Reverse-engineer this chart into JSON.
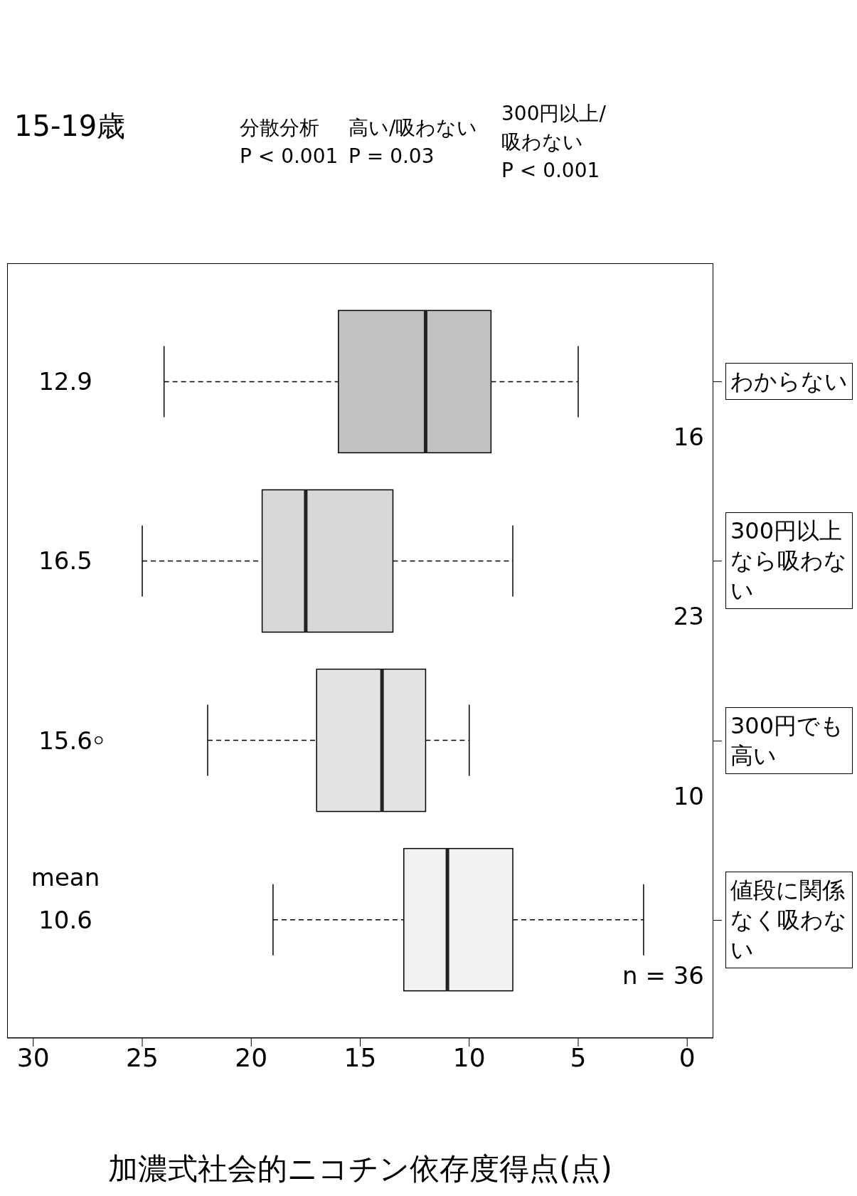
{
  "chart_data": {
    "type": "box",
    "orientation": "horizontal",
    "title": "15-19歳",
    "xlabel": "加濃式社会的ニコチン依存度得点(点)",
    "categories": [
      "わからない",
      "300円以上なら吸わない",
      "300円でも高い",
      "値段に関係なく吸わない"
    ],
    "boxes": [
      {
        "low": 5,
        "q1": 9,
        "median": 12,
        "q3": 16,
        "high": 24
      },
      {
        "low": 8,
        "q1": 13.5,
        "median": 17.5,
        "q3": 19.5,
        "high": 25
      },
      {
        "low": 10,
        "q1": 12,
        "median": 14,
        "q3": 17,
        "high": 22,
        "outliers": [
          27
        ]
      },
      {
        "low": 2,
        "q1": 8,
        "median": 11,
        "q3": 13,
        "high": 19
      }
    ],
    "colors": [
      "#c2c2c2",
      "#d8d8d8",
      "#e4e4e4",
      "#f2f2f2"
    ],
    "xlim": [
      31.2,
      -1.2
    ],
    "xticks": [
      0,
      5,
      10,
      15,
      20,
      25,
      30
    ],
    "annotations": [
      "分散分析\nP < 0.001",
      "高い/吸わない\nP = 0.03",
      "300円以上/\n吸わない\nP < 0.001",
      "mean",
      "12.9",
      "16.5",
      "15.6",
      "10.6",
      "16",
      "23",
      "10",
      "n = 36"
    ]
  }
}
